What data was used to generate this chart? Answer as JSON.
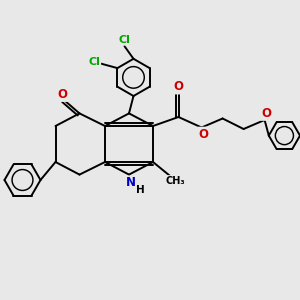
{
  "bg_color": "#e8e8e8",
  "bond_color": "#000000",
  "bond_width": 1.4,
  "atom_colors": {
    "C": "#000000",
    "N": "#0000CC",
    "O": "#CC0000",
    "Cl": "#00AA00",
    "H": "#000000"
  }
}
